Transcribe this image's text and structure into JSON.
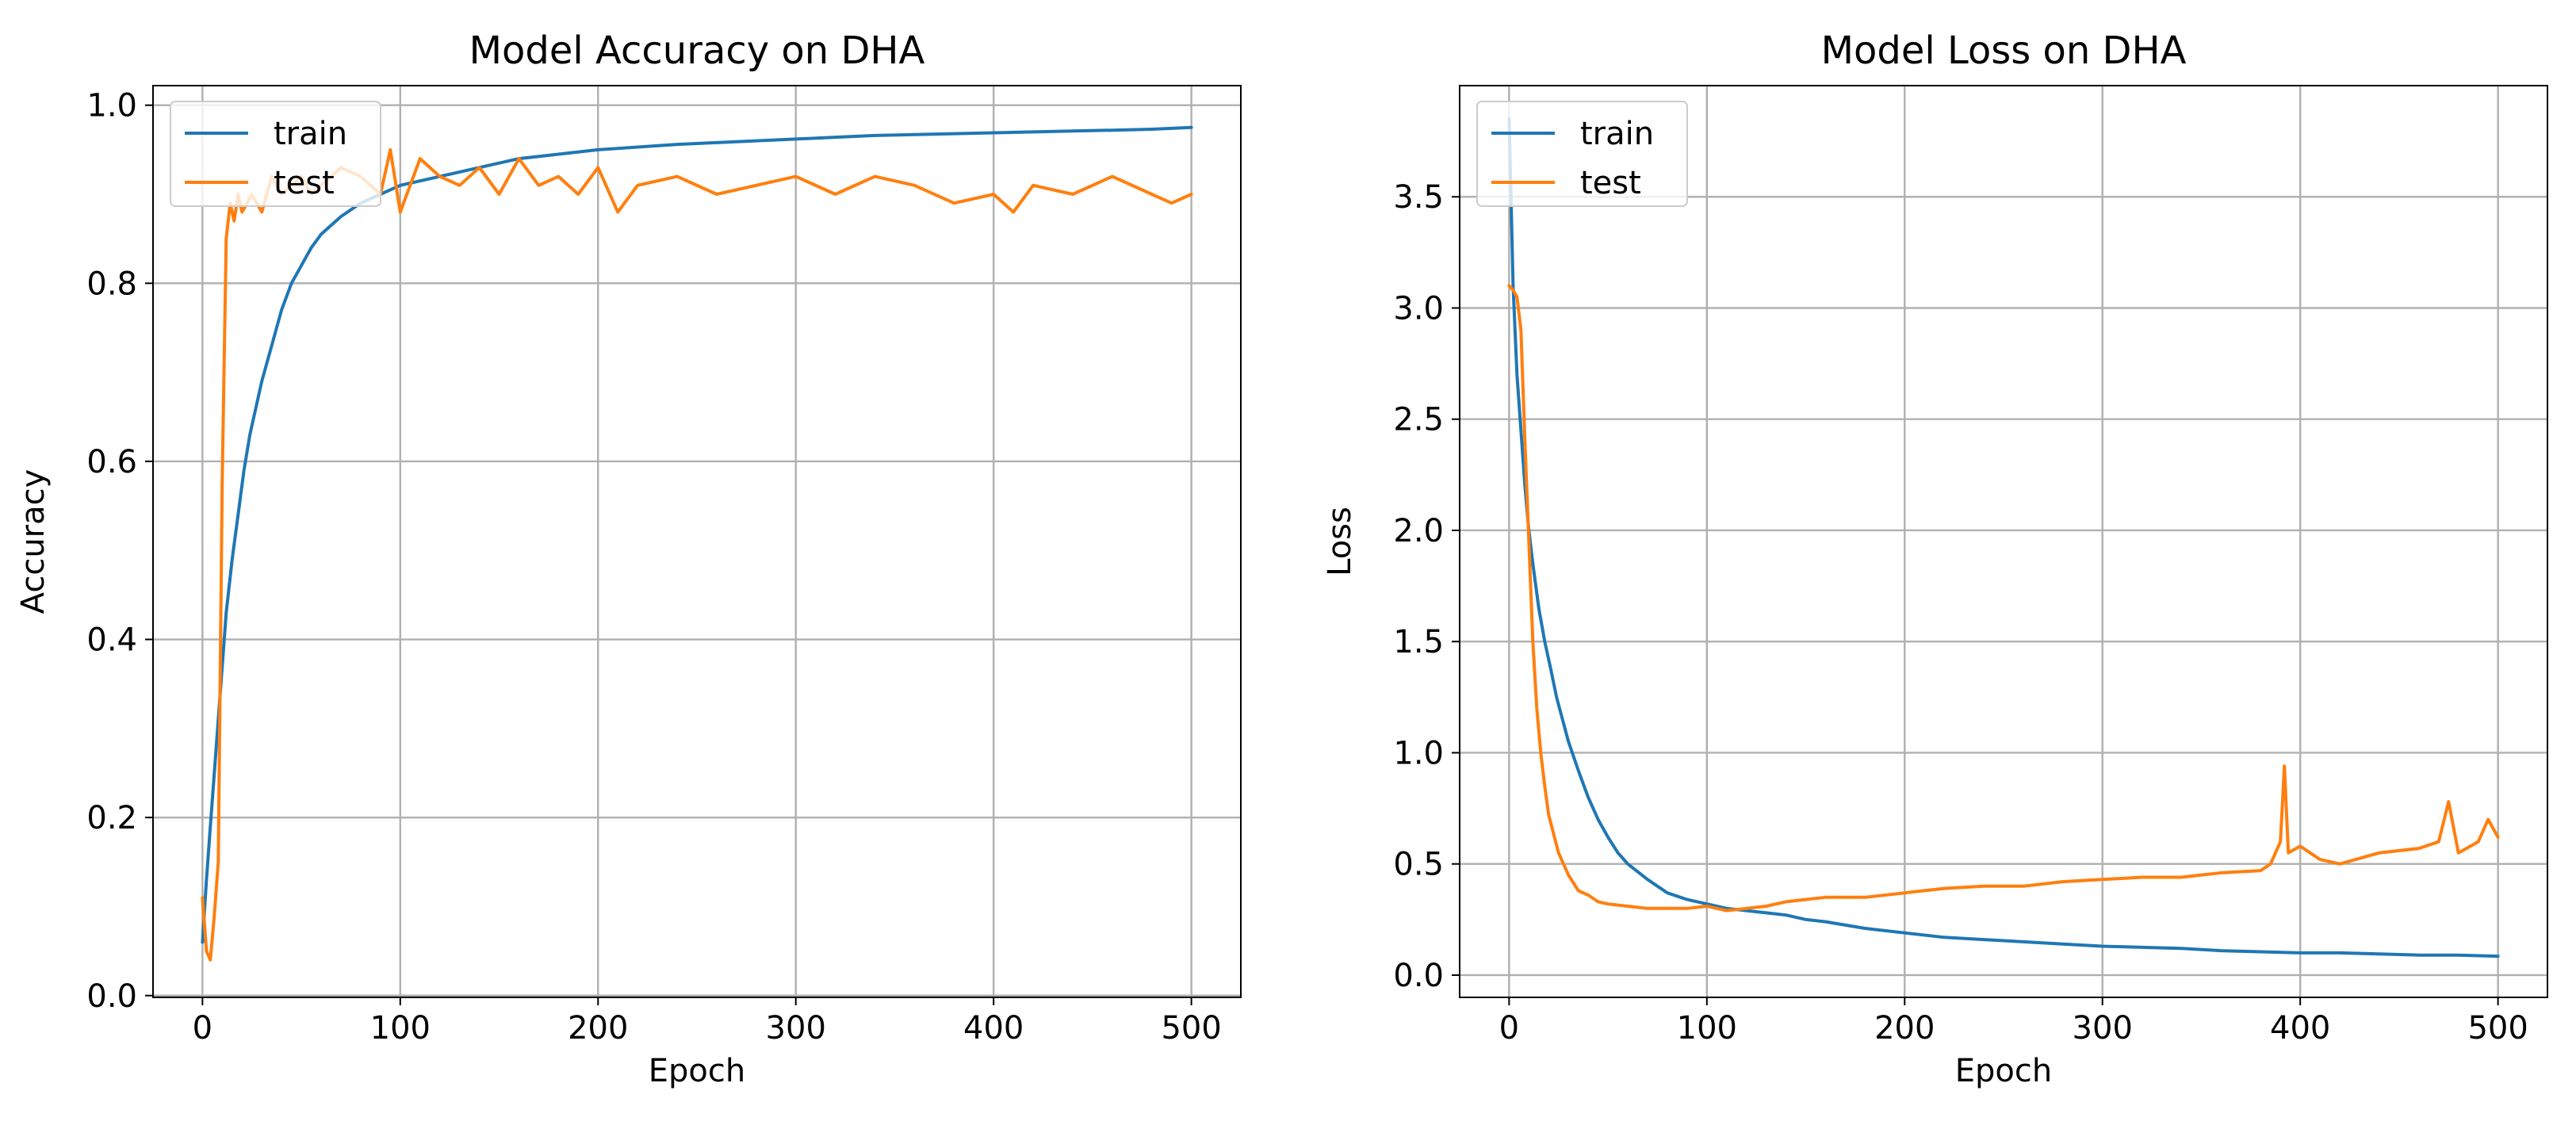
{
  "colors": {
    "train": "#1f77b4",
    "test": "#ff7f0e",
    "grid": "#b0b0b0",
    "axis": "#000000"
  },
  "chart_data": [
    {
      "type": "line",
      "title": "Model Accuracy on DHA",
      "xlabel": "Epoch",
      "ylabel": "Accuracy",
      "xlim": [
        -25,
        525
      ],
      "ylim": [
        -0.002,
        1.022
      ],
      "xticks": [
        0,
        100,
        200,
        300,
        400,
        500
      ],
      "xtick_labels": [
        "0",
        "100",
        "200",
        "300",
        "400",
        "500"
      ],
      "yticks": [
        0.0,
        0.2,
        0.4,
        0.6,
        0.8,
        1.0
      ],
      "ytick_labels": [
        "0.0",
        "0.2",
        "0.4",
        "0.6",
        "0.8",
        "1.0"
      ],
      "grid": true,
      "legend_position": "upper left",
      "series": [
        {
          "name": "train",
          "x": [
            0,
            2,
            4,
            6,
            8,
            10,
            12,
            15,
            18,
            21,
            24,
            27,
            30,
            35,
            40,
            45,
            50,
            55,
            60,
            70,
            80,
            90,
            100,
            110,
            120,
            130,
            140,
            150,
            160,
            180,
            200,
            220,
            240,
            260,
            280,
            300,
            320,
            340,
            360,
            380,
            400,
            420,
            440,
            460,
            480,
            500
          ],
          "y": [
            0.06,
            0.13,
            0.19,
            0.25,
            0.31,
            0.37,
            0.43,
            0.49,
            0.54,
            0.59,
            0.63,
            0.66,
            0.69,
            0.73,
            0.77,
            0.8,
            0.82,
            0.84,
            0.855,
            0.875,
            0.89,
            0.9,
            0.91,
            0.915,
            0.92,
            0.925,
            0.93,
            0.935,
            0.94,
            0.945,
            0.95,
            0.953,
            0.956,
            0.958,
            0.96,
            0.962,
            0.964,
            0.966,
            0.967,
            0.968,
            0.969,
            0.97,
            0.971,
            0.972,
            0.973,
            0.975
          ]
        },
        {
          "name": "test",
          "x": [
            0,
            2,
            4,
            6,
            8,
            10,
            12,
            14,
            16,
            18,
            20,
            25,
            30,
            35,
            40,
            45,
            50,
            55,
            60,
            70,
            80,
            90,
            95,
            100,
            110,
            120,
            130,
            140,
            150,
            160,
            170,
            180,
            190,
            200,
            210,
            220,
            240,
            260,
            280,
            300,
            320,
            340,
            360,
            380,
            400,
            410,
            420,
            440,
            460,
            480,
            490,
            500
          ],
          "y": [
            0.11,
            0.05,
            0.04,
            0.09,
            0.15,
            0.58,
            0.85,
            0.89,
            0.87,
            0.9,
            0.88,
            0.9,
            0.88,
            0.92,
            0.9,
            0.91,
            0.92,
            0.9,
            0.91,
            0.93,
            0.92,
            0.9,
            0.95,
            0.88,
            0.94,
            0.92,
            0.91,
            0.93,
            0.9,
            0.94,
            0.91,
            0.92,
            0.9,
            0.93,
            0.88,
            0.91,
            0.92,
            0.9,
            0.91,
            0.92,
            0.9,
            0.92,
            0.91,
            0.89,
            0.9,
            0.88,
            0.91,
            0.9,
            0.92,
            0.9,
            0.89,
            0.9
          ]
        }
      ]
    },
    {
      "type": "line",
      "title": "Model Loss on DHA",
      "xlabel": "Epoch",
      "ylabel": "Loss",
      "xlim": [
        -25,
        525
      ],
      "ylim": [
        -0.1,
        4.0
      ],
      "xticks": [
        0,
        100,
        200,
        300,
        400,
        500
      ],
      "xtick_labels": [
        "0",
        "100",
        "200",
        "300",
        "400",
        "500"
      ],
      "yticks": [
        0.0,
        0.5,
        1.0,
        1.5,
        2.0,
        2.5,
        3.0,
        3.5
      ],
      "ytick_labels": [
        "0.0",
        "0.5",
        "1.0",
        "1.5",
        "2.0",
        "2.5",
        "3.0",
        "3.5"
      ],
      "grid": true,
      "legend_position": "upper left",
      "series": [
        {
          "name": "train",
          "x": [
            0,
            2,
            4,
            6,
            8,
            10,
            12,
            15,
            18,
            21,
            24,
            27,
            30,
            35,
            40,
            45,
            50,
            55,
            60,
            70,
            80,
            90,
            100,
            110,
            120,
            130,
            140,
            150,
            160,
            180,
            200,
            220,
            240,
            260,
            280,
            300,
            320,
            340,
            360,
            380,
            400,
            420,
            440,
            460,
            480,
            500
          ],
          "y": [
            3.85,
            3.1,
            2.7,
            2.45,
            2.2,
            2.0,
            1.85,
            1.65,
            1.5,
            1.38,
            1.25,
            1.15,
            1.05,
            0.92,
            0.8,
            0.7,
            0.62,
            0.55,
            0.5,
            0.43,
            0.37,
            0.34,
            0.32,
            0.3,
            0.29,
            0.28,
            0.27,
            0.25,
            0.24,
            0.21,
            0.19,
            0.17,
            0.16,
            0.15,
            0.14,
            0.13,
            0.125,
            0.12,
            0.11,
            0.105,
            0.1,
            0.1,
            0.095,
            0.09,
            0.09,
            0.085
          ]
        },
        {
          "name": "test",
          "x": [
            0,
            2,
            4,
            6,
            8,
            10,
            12,
            14,
            16,
            18,
            20,
            25,
            30,
            35,
            40,
            45,
            50,
            60,
            70,
            80,
            90,
            100,
            110,
            120,
            130,
            140,
            150,
            160,
            180,
            200,
            220,
            240,
            260,
            280,
            300,
            320,
            340,
            360,
            380,
            385,
            390,
            392,
            394,
            400,
            410,
            420,
            440,
            460,
            470,
            475,
            480,
            490,
            495,
            500
          ],
          "y": [
            3.1,
            3.08,
            3.05,
            2.9,
            2.4,
            1.95,
            1.5,
            1.2,
            1.0,
            0.85,
            0.72,
            0.55,
            0.45,
            0.38,
            0.36,
            0.33,
            0.32,
            0.31,
            0.3,
            0.3,
            0.3,
            0.31,
            0.29,
            0.3,
            0.31,
            0.33,
            0.34,
            0.35,
            0.35,
            0.37,
            0.39,
            0.4,
            0.4,
            0.42,
            0.43,
            0.44,
            0.44,
            0.46,
            0.47,
            0.5,
            0.6,
            0.94,
            0.55,
            0.58,
            0.52,
            0.5,
            0.55,
            0.57,
            0.6,
            0.78,
            0.55,
            0.6,
            0.7,
            0.62
          ]
        }
      ]
    }
  ]
}
